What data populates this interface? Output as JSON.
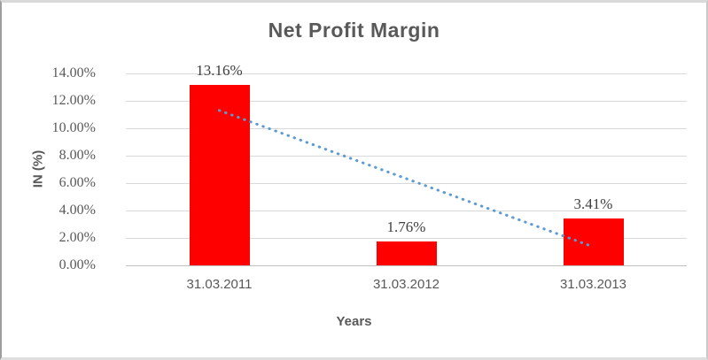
{
  "chart": {
    "title": "Net Profit Margin",
    "y_axis_title": "IN (%)",
    "x_axis_title": "Years",
    "colors": {
      "bar": "#ff0000",
      "trendline": "#5b9bd5",
      "text": "#595959",
      "data_label": "#3f3f3f",
      "gridline": "#d9d9d9",
      "axis_line": "#c0c0c0",
      "frame_border": "#d9d9d9"
    }
  },
  "chart_data": {
    "type": "bar",
    "title": "Net Profit Margin",
    "categories": [
      "31.03.2011",
      "31.03.2012",
      "31.03.2013"
    ],
    "values": [
      13.16,
      1.76,
      3.41
    ],
    "data_labels": [
      "13.16%",
      "1.76%",
      "3.41%"
    ],
    "xlabel": "Years",
    "ylabel": "IN (%)",
    "ylim": [
      0,
      14
    ],
    "y_ticks": [
      0,
      2,
      4,
      6,
      8,
      10,
      12,
      14
    ],
    "y_tick_labels": [
      "0.00%",
      "2.00%",
      "4.00%",
      "6.00%",
      "8.00%",
      "10.00%",
      "12.00%",
      "14.00%"
    ],
    "grid": true,
    "legend": false,
    "series_name": "Net Profit Margin",
    "series_color": "#ff0000",
    "trendline": {
      "type": "linear",
      "style": "dotted",
      "color": "#5b9bd5",
      "start_value": 11.3,
      "end_value": 1.35
    }
  }
}
